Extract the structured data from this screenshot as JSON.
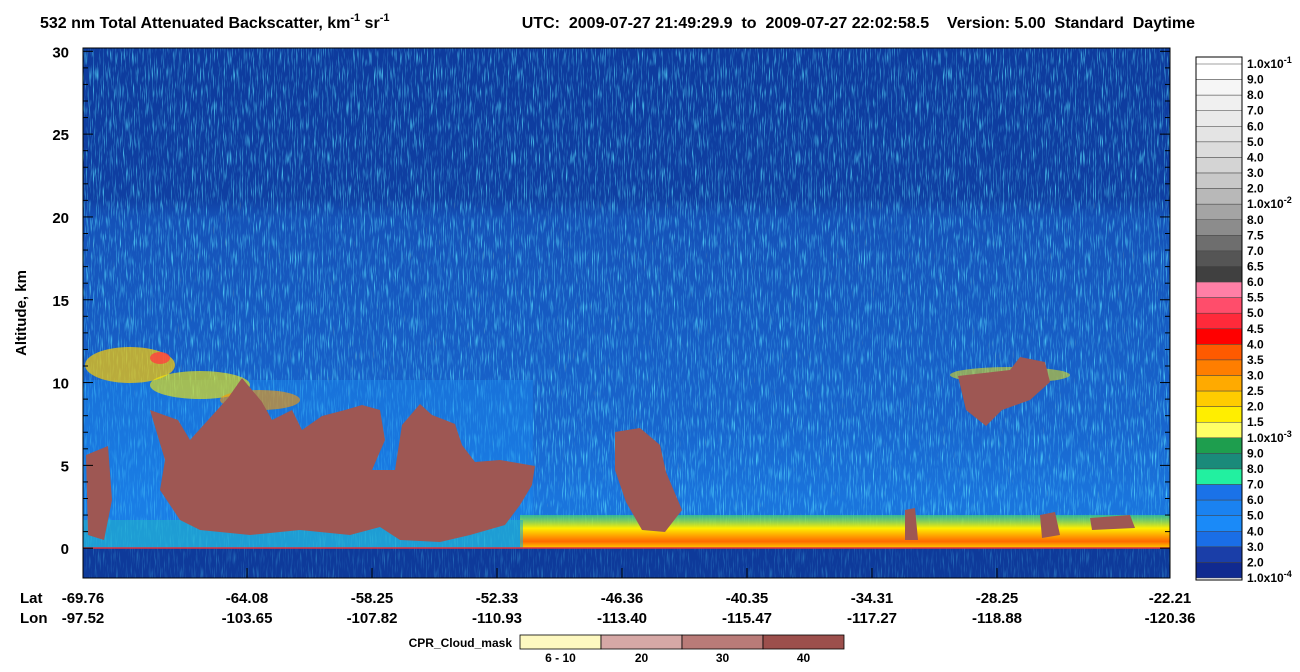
{
  "chart_data": {
    "type": "curtain",
    "title": [
      "532 nm Total Attenuated Backscatter, km",
      "-1",
      " sr",
      "-1"
    ],
    "subtitle": "UTC:  2009-07-27 21:49:29.9  to  2009-07-27 22:02:58.5    Version: 5.00  Standard  Daytime",
    "ylabel": "Altitude, km",
    "ylim": [
      -1.8,
      30.2
    ],
    "yticks": [
      0,
      5,
      10,
      15,
      20,
      25,
      30
    ],
    "lat_label": "Lat",
    "lon_label": "Lon",
    "lat_ticks": [
      -69.76,
      -64.08,
      -58.25,
      -52.33,
      -46.36,
      -40.35,
      -34.31,
      -28.25,
      -22.21
    ],
    "lon_ticks": [
      -97.52,
      -103.65,
      -107.82,
      -110.93,
      {
        "value": -113.4,
        "label": "-113.40"
      },
      -115.47,
      -117.27,
      -118.88,
      -120.36
    ],
    "colorbar": {
      "labels": [
        {
          "text": "1.0x10",
          "exp": "-1"
        },
        {
          "text": "9.0"
        },
        {
          "text": "8.0"
        },
        {
          "text": "7.0"
        },
        {
          "text": "6.0"
        },
        {
          "text": "5.0"
        },
        {
          "text": "4.0"
        },
        {
          "text": "3.0"
        },
        {
          "text": "2.0"
        },
        {
          "text": "1.0x10",
          "exp": "-2"
        },
        {
          "text": "8.0"
        },
        {
          "text": "7.5"
        },
        {
          "text": "7.0"
        },
        {
          "text": "6.5"
        },
        {
          "text": "6.0"
        },
        {
          "text": "5.5"
        },
        {
          "text": "5.0"
        },
        {
          "text": "4.5"
        },
        {
          "text": "4.0"
        },
        {
          "text": "3.5"
        },
        {
          "text": "3.0"
        },
        {
          "text": "2.5"
        },
        {
          "text": "2.0"
        },
        {
          "text": "1.5"
        },
        {
          "text": "1.0x10",
          "exp": "-3"
        },
        {
          "text": "9.0"
        },
        {
          "text": "8.0"
        },
        {
          "text": "7.0"
        },
        {
          "text": "6.0"
        },
        {
          "text": "5.0"
        },
        {
          "text": "4.0"
        },
        {
          "text": "3.0"
        },
        {
          "text": "2.0"
        },
        {
          "text": "1.0x10",
          "exp": "-4"
        }
      ],
      "colors": [
        "#ffffff",
        "#f6f6f6",
        "#f0f0f0",
        "#eaeaea",
        "#e4e4e4",
        "#dcdcdc",
        "#d4d4d4",
        "#c8c8c8",
        "#b8b8b8",
        "#a4a4a4",
        "#8c8c8c",
        "#6e6e6e",
        "#555555",
        "#404040",
        "#ff7fa6",
        "#ff4d6b",
        "#ff2a3a",
        "#ff0000",
        "#ff5a00",
        "#ff7e00",
        "#ffaa00",
        "#ffcc00",
        "#ffee00",
        "#ffff66",
        "#1e9e4e",
        "#1a8a7a",
        "#22f0a0",
        "#1a72e8",
        "#1a82f0",
        "#1a8af8",
        "#1a6ee6",
        "#1a3ea8",
        "#102a90"
      ]
    },
    "cpr_legend": {
      "title": "CPR_Cloud_mask",
      "labels": [
        "6 - 10",
        "20",
        "30",
        "40"
      ],
      "colors": [
        "#fdf8c0",
        "#d6a8a6",
        "#b97b78",
        "#9c4f4c"
      ]
    }
  }
}
